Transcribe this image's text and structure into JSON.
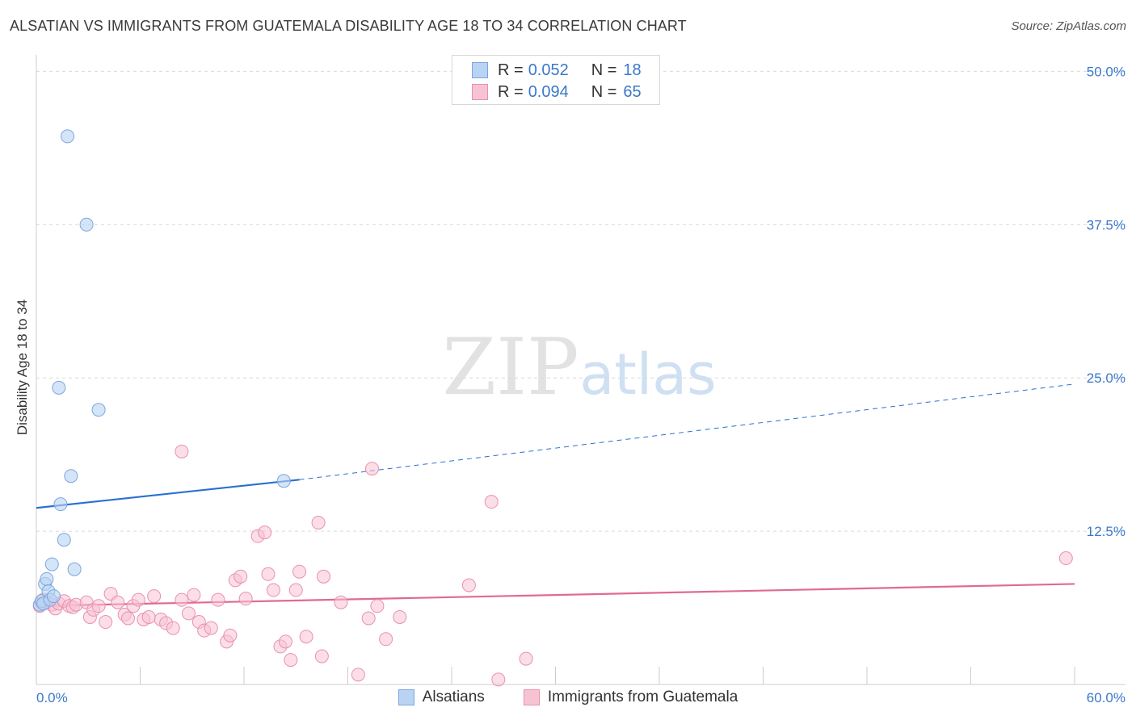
{
  "title": "ALSATIAN VS IMMIGRANTS FROM GUATEMALA DISABILITY AGE 18 TO 34 CORRELATION CHART",
  "source": "Source: ZipAtlas.com",
  "watermark": {
    "zip": "ZIP",
    "atlas": "atlas"
  },
  "legend_top": {
    "rows": [
      {
        "r_label": "R =",
        "r_value": "0.052",
        "n_label": "N =",
        "n_value": "18"
      },
      {
        "r_label": "R =",
        "r_value": "0.094",
        "n_label": "N =",
        "n_value": "65"
      }
    ]
  },
  "legend_bottom": {
    "series1": "Alsatians",
    "series2": "Immigrants from Guatemala"
  },
  "colors": {
    "blue_fill": "#b9d3f3",
    "blue_stroke": "#7aa6de",
    "blue_line": "#2a70d0",
    "pink_fill": "#f7c3d3",
    "pink_stroke": "#ea90ae",
    "pink_line": "#e06a92",
    "tick_text": "#3a78c9",
    "grid": "#d9d9d9"
  },
  "chart_data": {
    "type": "scatter",
    "title": "ALSATIAN VS IMMIGRANTS FROM GUATEMALA DISABILITY AGE 18 TO 34 CORRELATION CHART",
    "xlabel": "",
    "ylabel": "Disability Age 18 to 34",
    "xlim": [
      0,
      60
    ],
    "ylim": [
      0,
      52
    ],
    "x_tick_labels": [
      "0.0%",
      "60.0%"
    ],
    "y_ticks": [
      12.5,
      25.0,
      37.5,
      50.0
    ],
    "y_tick_labels": [
      "12.5%",
      "25.0%",
      "37.5%",
      "50.0%"
    ],
    "series": [
      {
        "name": "Alsatians",
        "R": 0.052,
        "N": 18,
        "points": [
          [
            0.2,
            6.5
          ],
          [
            0.3,
            6.8
          ],
          [
            0.4,
            6.6
          ],
          [
            0.5,
            8.2
          ],
          [
            0.6,
            8.6
          ],
          [
            0.7,
            7.6
          ],
          [
            0.8,
            6.9
          ],
          [
            0.9,
            9.8
          ],
          [
            1.0,
            7.2
          ],
          [
            1.4,
            14.7
          ],
          [
            1.6,
            11.8
          ],
          [
            1.8,
            44.7
          ],
          [
            2.0,
            17.0
          ],
          [
            2.2,
            9.4
          ],
          [
            2.9,
            37.5
          ],
          [
            1.3,
            24.2
          ],
          [
            3.6,
            22.4
          ],
          [
            14.3,
            16.6
          ]
        ],
        "trend": {
          "x0": 0,
          "y0": 14.4,
          "x1": 15.2,
          "y1": 16.7,
          "dash_x1": 60,
          "dash_y1": 24.5
        }
      },
      {
        "name": "Immigrants from Guatemala",
        "R": 0.094,
        "N": 65,
        "points": [
          [
            0.2,
            6.4
          ],
          [
            0.4,
            6.9
          ],
          [
            0.6,
            6.7
          ],
          [
            0.9,
            6.5
          ],
          [
            1.1,
            6.2
          ],
          [
            1.3,
            6.6
          ],
          [
            1.6,
            6.8
          ],
          [
            1.9,
            6.4
          ],
          [
            2.1,
            6.3
          ],
          [
            2.3,
            6.5
          ],
          [
            2.9,
            6.7
          ],
          [
            3.1,
            5.5
          ],
          [
            3.3,
            6.1
          ],
          [
            3.6,
            6.4
          ],
          [
            4.0,
            5.1
          ],
          [
            4.3,
            7.4
          ],
          [
            4.7,
            6.7
          ],
          [
            5.1,
            5.7
          ],
          [
            5.3,
            5.4
          ],
          [
            5.6,
            6.4
          ],
          [
            5.9,
            6.9
          ],
          [
            6.2,
            5.3
          ],
          [
            6.5,
            5.5
          ],
          [
            6.8,
            7.2
          ],
          [
            7.2,
            5.3
          ],
          [
            7.5,
            5.0
          ],
          [
            7.9,
            4.6
          ],
          [
            8.4,
            6.9
          ],
          [
            8.8,
            5.8
          ],
          [
            9.1,
            7.3
          ],
          [
            9.4,
            5.1
          ],
          [
            9.7,
            4.4
          ],
          [
            10.1,
            4.6
          ],
          [
            10.5,
            6.9
          ],
          [
            11.0,
            3.5
          ],
          [
            11.2,
            4.0
          ],
          [
            11.5,
            8.5
          ],
          [
            11.8,
            8.8
          ],
          [
            12.1,
            7.0
          ],
          [
            12.8,
            12.1
          ],
          [
            13.2,
            12.4
          ],
          [
            13.4,
            9.0
          ],
          [
            13.7,
            7.7
          ],
          [
            14.1,
            3.1
          ],
          [
            14.4,
            3.5
          ],
          [
            14.7,
            2.0
          ],
          [
            15.0,
            7.7
          ],
          [
            15.2,
            9.2
          ],
          [
            15.6,
            3.9
          ],
          [
            16.3,
            13.2
          ],
          [
            16.5,
            2.3
          ],
          [
            16.6,
            8.8
          ],
          [
            17.6,
            6.7
          ],
          [
            18.6,
            0.8
          ],
          [
            19.2,
            5.4
          ],
          [
            19.4,
            17.6
          ],
          [
            19.7,
            6.4
          ],
          [
            20.2,
            3.7
          ],
          [
            21.0,
            5.5
          ],
          [
            25.0,
            8.1
          ],
          [
            26.3,
            14.9
          ],
          [
            26.7,
            0.4
          ],
          [
            28.3,
            2.1
          ],
          [
            8.4,
            19.0
          ],
          [
            59.5,
            10.3
          ]
        ],
        "trend": {
          "x0": 0,
          "y0": 6.4,
          "x1": 60,
          "y1": 8.2
        }
      }
    ]
  }
}
